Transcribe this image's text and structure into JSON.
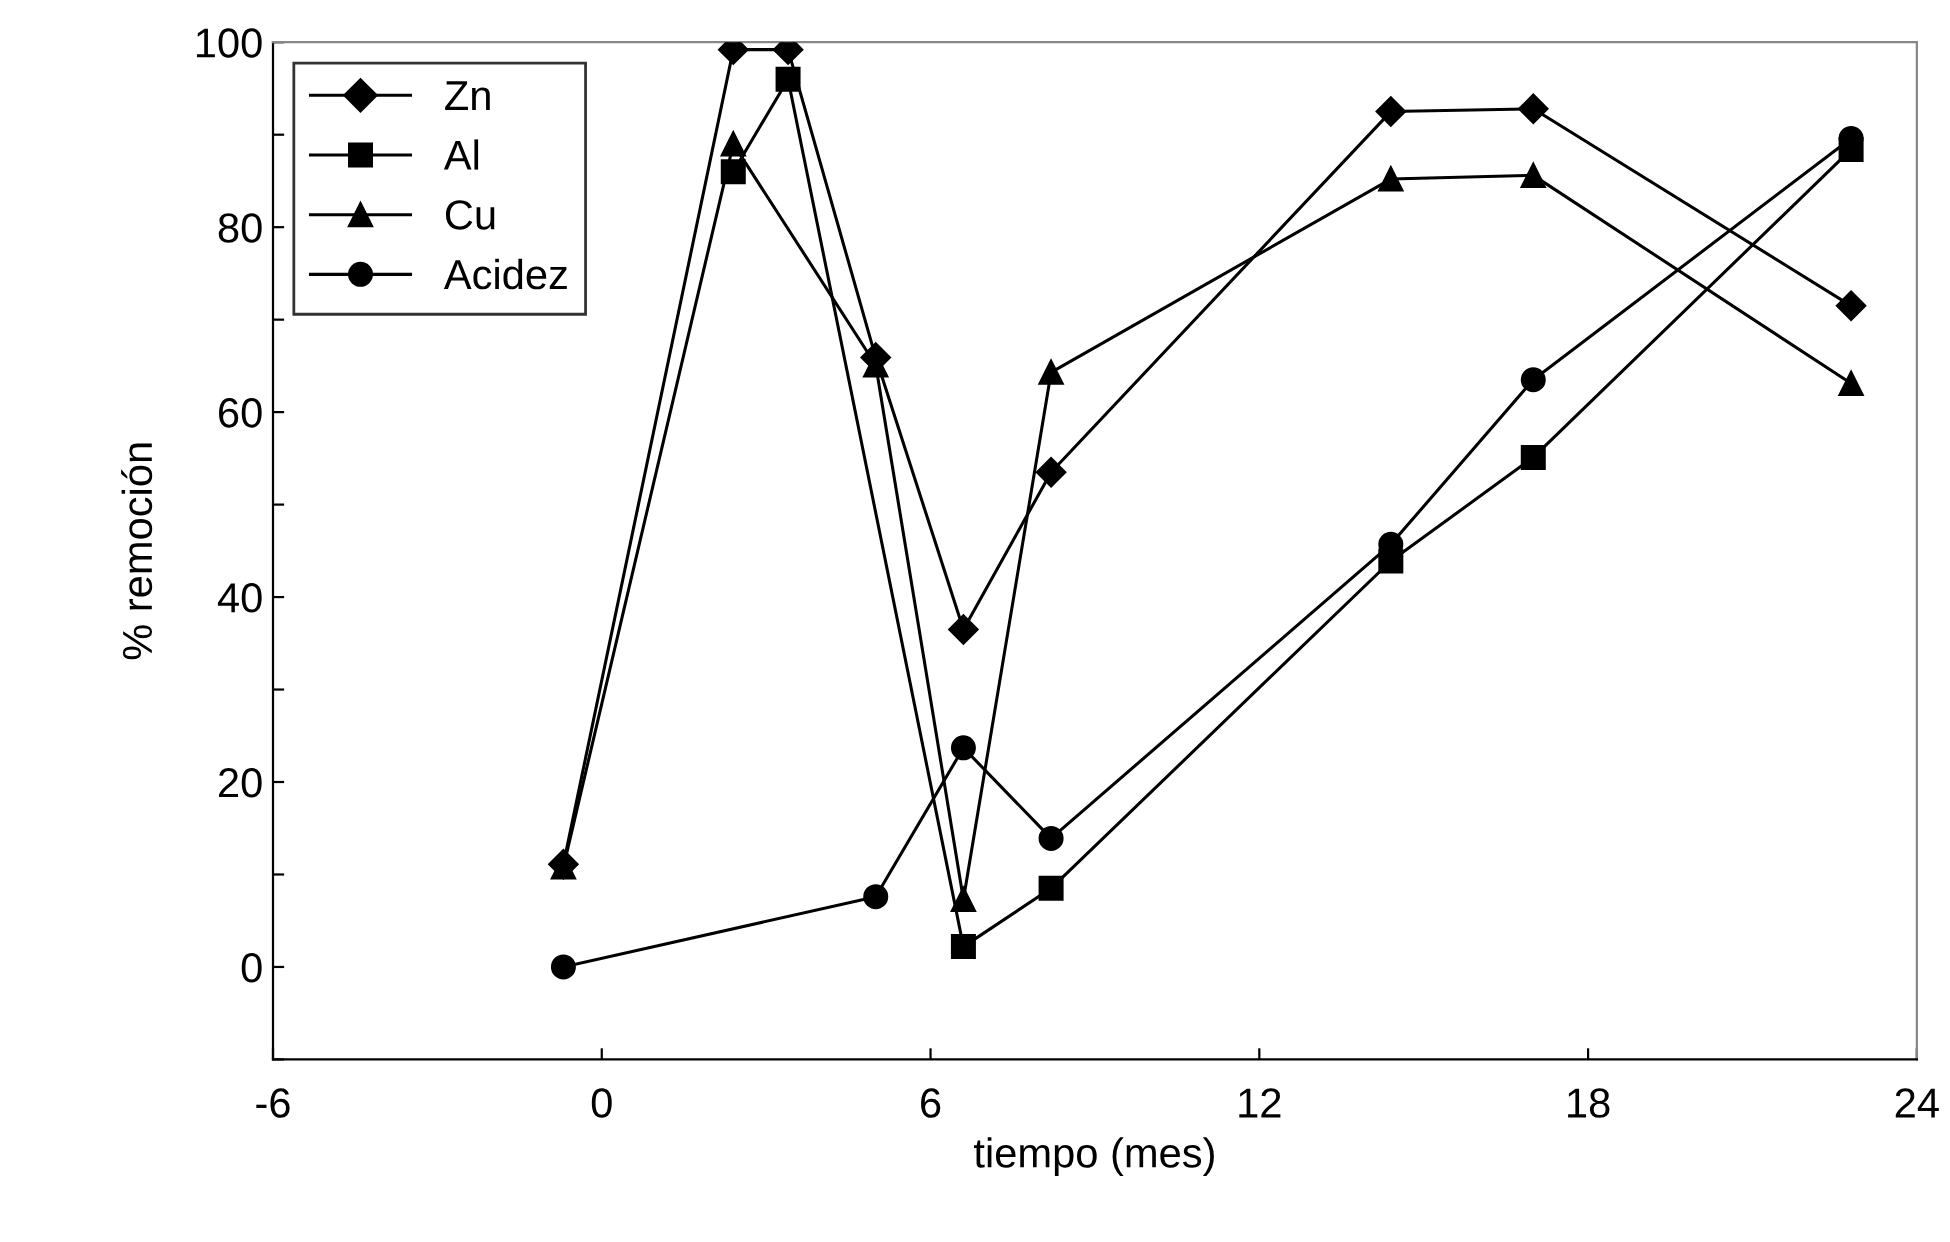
{
  "chart_data": {
    "type": "line",
    "xlabel": "tiempo (mes)",
    "ylabel": "% remoción",
    "x": [
      -0.7,
      2.4,
      3.4,
      5.0,
      6.6,
      8.2,
      14.4,
      17.0,
      22.8
    ],
    "series": [
      {
        "name": "Zn",
        "color": "#000000",
        "marker": "diamond",
        "values": [
          11.1,
          99.2,
          99.2,
          65.9,
          36.5,
          53.5,
          92.5,
          92.8,
          71.5
        ]
      },
      {
        "name": "Al",
        "color": "#000000",
        "marker": "square",
        "values": [
          null,
          86,
          96,
          null,
          2.2,
          8.5,
          43.9,
          55.1,
          88.4
        ]
      },
      {
        "name": "Cu",
        "color": "#000000",
        "marker": "triangle",
        "values": [
          10.8,
          89,
          null,
          65.1,
          7.3,
          64.3,
          85.2,
          85.6,
          63.1
        ]
      },
      {
        "name": "Acidez",
        "color": "#000000",
        "marker": "circle",
        "values": [
          0,
          null,
          null,
          7.6,
          23.7,
          13.9,
          45.7,
          63.5,
          89.6
        ]
      }
    ],
    "xlim": [
      -6,
      24
    ],
    "xticks": [
      -6,
      0,
      6,
      12,
      18,
      24
    ],
    "ylim": [
      -10,
      100
    ],
    "yticks": [
      {
        "value": -10,
        "label": null
      },
      0,
      {
        "value": 10,
        "label": null
      },
      20,
      {
        "value": 30,
        "label": null
      },
      40,
      {
        "value": 50,
        "label": null
      },
      60,
      {
        "value": 70,
        "label": null
      },
      80,
      {
        "value": 90,
        "label": null
      },
      100
    ],
    "grid": false,
    "legend": "top left",
    "line_style": "solid"
  }
}
